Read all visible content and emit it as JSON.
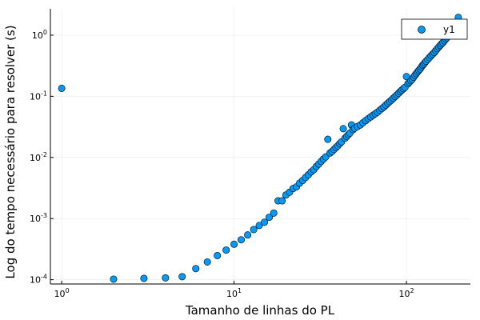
{
  "chart_data": {
    "type": "scatter",
    "xscale": "log",
    "yscale": "log",
    "xlabel": "Tamanho de linhas do PL",
    "ylabel": "Log do tempo necessário para resolver (s)",
    "xlim": [
      0.86,
      235
    ],
    "ylim": [
      8.5e-05,
      2.7
    ],
    "grid": true,
    "legend_position": "top-right",
    "marker_color": "#009AFA",
    "x_ticks": [
      {
        "value": 1,
        "base": "10",
        "exp": "0"
      },
      {
        "value": 10,
        "base": "10",
        "exp": "1"
      },
      {
        "value": 100,
        "base": "10",
        "exp": "2"
      }
    ],
    "y_ticks": [
      {
        "value": 0.0001,
        "base": "10",
        "exp": "-4"
      },
      {
        "value": 0.001,
        "base": "10",
        "exp": "-3"
      },
      {
        "value": 0.01,
        "base": "10",
        "exp": "-2"
      },
      {
        "value": 0.1,
        "base": "10",
        "exp": "-1"
      },
      {
        "value": 1,
        "base": "10",
        "exp": "0"
      }
    ],
    "series": [
      {
        "name": "y1",
        "points": [
          [
            1,
            0.135
          ],
          [
            2,
            0.000102
          ],
          [
            3,
            0.000105
          ],
          [
            4,
            0.000107
          ],
          [
            5,
            0.000112
          ],
          [
            6,
            0.000152
          ],
          [
            7,
            0.000195
          ],
          [
            8,
            0.000248
          ],
          [
            9,
            0.000305
          ],
          [
            10,
            0.00038
          ],
          [
            11,
            0.00045
          ],
          [
            12,
            0.00054
          ],
          [
            13,
            0.00066
          ],
          [
            14,
            0.00077
          ],
          [
            15,
            0.00087
          ],
          [
            16,
            0.00105
          ],
          [
            17,
            0.00123
          ],
          [
            18,
            0.00195
          ],
          [
            19,
            0.00195
          ],
          [
            20,
            0.00243
          ],
          [
            21,
            0.0027
          ],
          [
            22,
            0.0031
          ],
          [
            23,
            0.0033
          ],
          [
            24,
            0.0038
          ],
          [
            25,
            0.0042
          ],
          [
            26,
            0.0047
          ],
          [
            27,
            0.0052
          ],
          [
            28,
            0.0058
          ],
          [
            29,
            0.0063
          ],
          [
            30,
            0.0071
          ],
          [
            31,
            0.0078
          ],
          [
            32,
            0.0086
          ],
          [
            33,
            0.0094
          ],
          [
            34,
            0.0102
          ],
          [
            35,
            0.0198
          ],
          [
            36,
            0.0118
          ],
          [
            37,
            0.0125
          ],
          [
            38,
            0.0135
          ],
          [
            39,
            0.0145
          ],
          [
            40,
            0.0155
          ],
          [
            41,
            0.0168
          ],
          [
            42,
            0.018
          ],
          [
            43,
            0.0295
          ],
          [
            44,
            0.0206
          ],
          [
            45,
            0.022
          ],
          [
            46,
            0.0235
          ],
          [
            47,
            0.025
          ],
          [
            48,
            0.034
          ],
          [
            49,
            0.0285
          ],
          [
            50,
            0.03
          ],
          [
            52,
            0.032
          ],
          [
            54,
            0.034
          ],
          [
            56,
            0.037
          ],
          [
            58,
            0.04
          ],
          [
            60,
            0.043
          ],
          [
            62,
            0.046
          ],
          [
            64,
            0.049
          ],
          [
            66,
            0.052
          ],
          [
            68,
            0.055
          ],
          [
            70,
            0.059
          ],
          [
            72,
            0.063
          ],
          [
            74,
            0.067
          ],
          [
            76,
            0.072
          ],
          [
            78,
            0.077
          ],
          [
            80,
            0.082
          ],
          [
            82,
            0.087
          ],
          [
            84,
            0.093
          ],
          [
            86,
            0.099
          ],
          [
            88,
            0.105
          ],
          [
            90,
            0.112
          ],
          [
            92,
            0.119
          ],
          [
            94,
            0.126
          ],
          [
            96,
            0.133
          ],
          [
            98,
            0.14
          ],
          [
            100,
            0.21
          ],
          [
            102,
            0.16
          ],
          [
            104,
            0.17
          ],
          [
            106,
            0.18
          ],
          [
            108,
            0.19
          ],
          [
            110,
            0.205
          ],
          [
            112,
            0.22
          ],
          [
            114,
            0.235
          ],
          [
            116,
            0.25
          ],
          [
            118,
            0.265
          ],
          [
            120,
            0.28
          ],
          [
            122,
            0.3
          ],
          [
            124,
            0.32
          ],
          [
            126,
            0.335
          ],
          [
            128,
            0.355
          ],
          [
            130,
            0.375
          ],
          [
            133,
            0.4
          ],
          [
            136,
            0.43
          ],
          [
            139,
            0.46
          ],
          [
            142,
            0.49
          ],
          [
            145,
            0.52
          ],
          [
            148,
            0.56
          ],
          [
            151,
            0.6
          ],
          [
            154,
            0.64
          ],
          [
            157,
            0.68
          ],
          [
            160,
            0.72
          ],
          [
            163,
            0.76
          ],
          [
            166,
            0.81
          ],
          [
            169,
            0.86
          ],
          [
            172,
            0.91
          ],
          [
            175,
            0.97
          ],
          [
            178,
            1.03
          ],
          [
            181,
            1.09
          ],
          [
            184,
            1.15
          ],
          [
            187,
            1.22
          ],
          [
            190,
            1.3
          ],
          [
            193,
            1.38
          ],
          [
            196,
            1.46
          ],
          [
            199,
            1.55
          ],
          [
            200,
            1.95
          ]
        ]
      }
    ]
  }
}
